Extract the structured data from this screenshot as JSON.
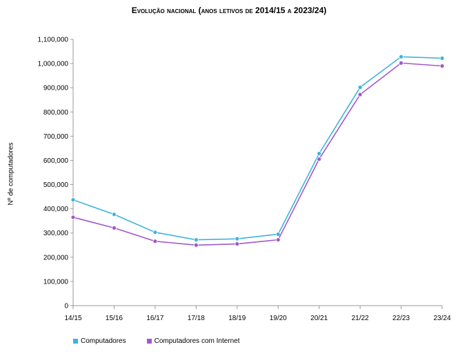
{
  "chart_data": {
    "type": "line",
    "title": "Evolução nacional (anos letivos de 2014/15 a 2023/24)",
    "xlabel": "",
    "ylabel": "Nº de computadores",
    "categories": [
      "14/15",
      "15/16",
      "16/17",
      "17/18",
      "18/19",
      "19/20",
      "20/21",
      "21/22",
      "22/23",
      "23/24"
    ],
    "ylim": [
      0,
      1100000
    ],
    "yticks": [
      "0",
      "100,000",
      "200,000",
      "300,000",
      "400,000",
      "500,000",
      "600,000",
      "700,000",
      "800,000",
      "900,000",
      "1,000,000",
      "1,100,000"
    ],
    "grid": false,
    "legend": "bottom-left",
    "series": [
      {
        "name": "Computadores",
        "color": "#3cb4dc",
        "values": [
          437000,
          377000,
          303000,
          272000,
          276000,
          295000,
          628000,
          902000,
          1028000,
          1022000
        ]
      },
      {
        "name": "Computadores com Internet",
        "color": "#a058c8",
        "values": [
          365000,
          321000,
          266000,
          250000,
          255000,
          272000,
          605000,
          872000,
          1002000,
          990000
        ]
      }
    ]
  }
}
